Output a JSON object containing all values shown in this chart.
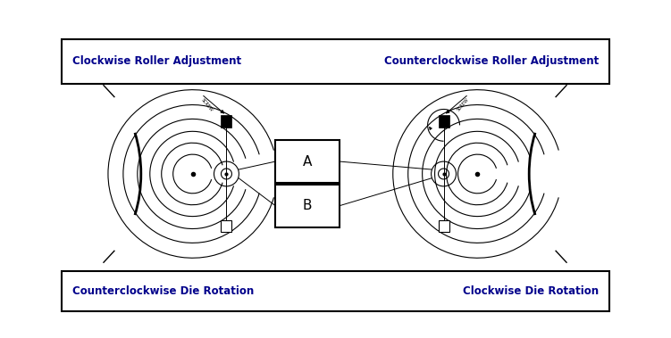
{
  "top_box_text_left": "Clockwise Roller Adjustment",
  "top_box_text_right": "Counterclockwise Roller Adjustment",
  "bottom_box_text_left": "Counterclockwise Die Rotation",
  "bottom_box_text_right": "Clockwise Die Rotation",
  "text_color": "#00008B",
  "box_color": "#000000",
  "diagram_color": "#000000",
  "label_A": "A",
  "label_B": "B",
  "bg_color": "#ffffff",
  "fig_width": 7.51,
  "fig_height": 3.79,
  "dpi": 100
}
